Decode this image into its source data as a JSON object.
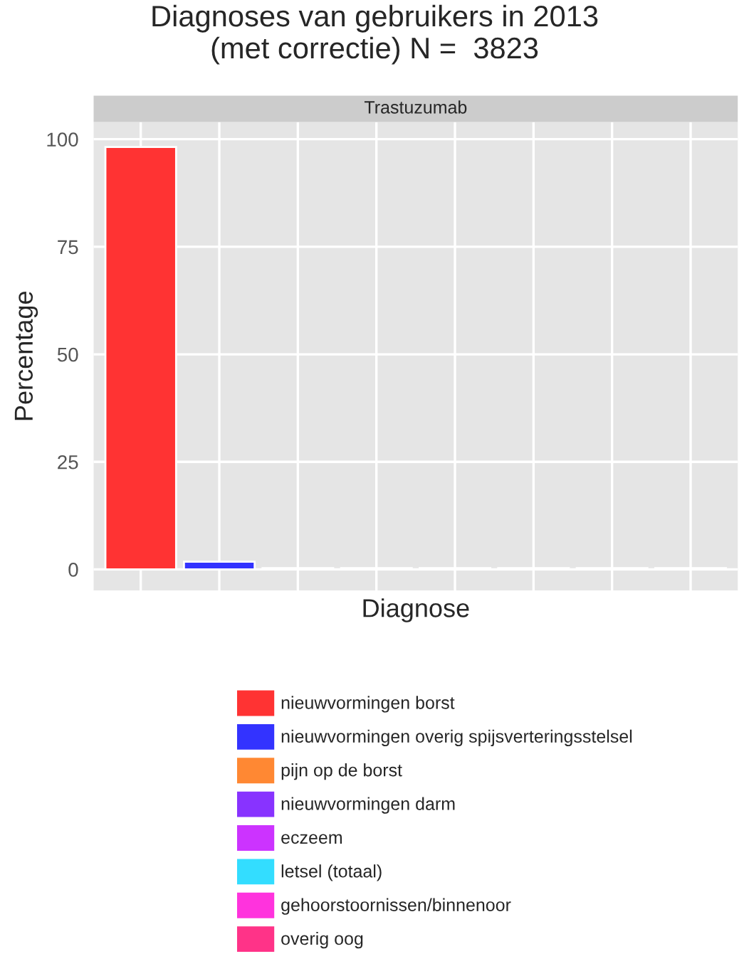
{
  "chart_data": {
    "type": "bar",
    "title": "Diagnoses van gebruikers in 2013\n(met correctie) N =  3823",
    "subtitle": "Trastuzumab",
    "xlabel": "Diagnose",
    "ylabel": "Percentage",
    "categories": [
      null,
      null,
      null,
      null,
      null,
      null,
      null,
      null
    ],
    "series": [
      {
        "name": "nieuwvormingen borst",
        "color": "#ff3333",
        "values": [
          98.2,
          null,
          null,
          null,
          null,
          null,
          null,
          null
        ]
      },
      {
        "name": "nieuwvormingen overig spijsverteringsstelsel",
        "color": "#3333ff",
        "values": [
          null,
          1.8,
          null,
          null,
          null,
          null,
          null,
          null
        ]
      },
      {
        "name": "pijn op de borst",
        "color": "#ff8833",
        "values": [
          null,
          null,
          0.3,
          null,
          null,
          null,
          null,
          null
        ]
      },
      {
        "name": "nieuwvormingen darm",
        "color": "#8833ff",
        "values": [
          null,
          null,
          null,
          0.3,
          null,
          null,
          null,
          null
        ]
      },
      {
        "name": "eczeem",
        "color": "#cc33ff",
        "values": [
          null,
          null,
          null,
          null,
          0.3,
          null,
          null,
          null
        ]
      },
      {
        "name": "letsel (totaal)",
        "color": "#33ddff",
        "values": [
          null,
          null,
          null,
          null,
          null,
          0.3,
          null,
          null
        ]
      },
      {
        "name": "gehoorstoornissen/binnenoor",
        "color": "#ff33dd",
        "values": [
          null,
          null,
          null,
          null,
          null,
          null,
          0.3,
          null
        ]
      },
      {
        "name": "overig oog",
        "color": "#ff3388",
        "values": [
          null,
          null,
          null,
          null,
          null,
          null,
          null,
          0.3
        ]
      }
    ],
    "ylim": [
      -4.9,
      104
    ],
    "yticks": [
      0,
      25,
      50,
      75,
      100
    ],
    "grid": true,
    "legend": "bottom",
    "tick_labels": "y"
  }
}
